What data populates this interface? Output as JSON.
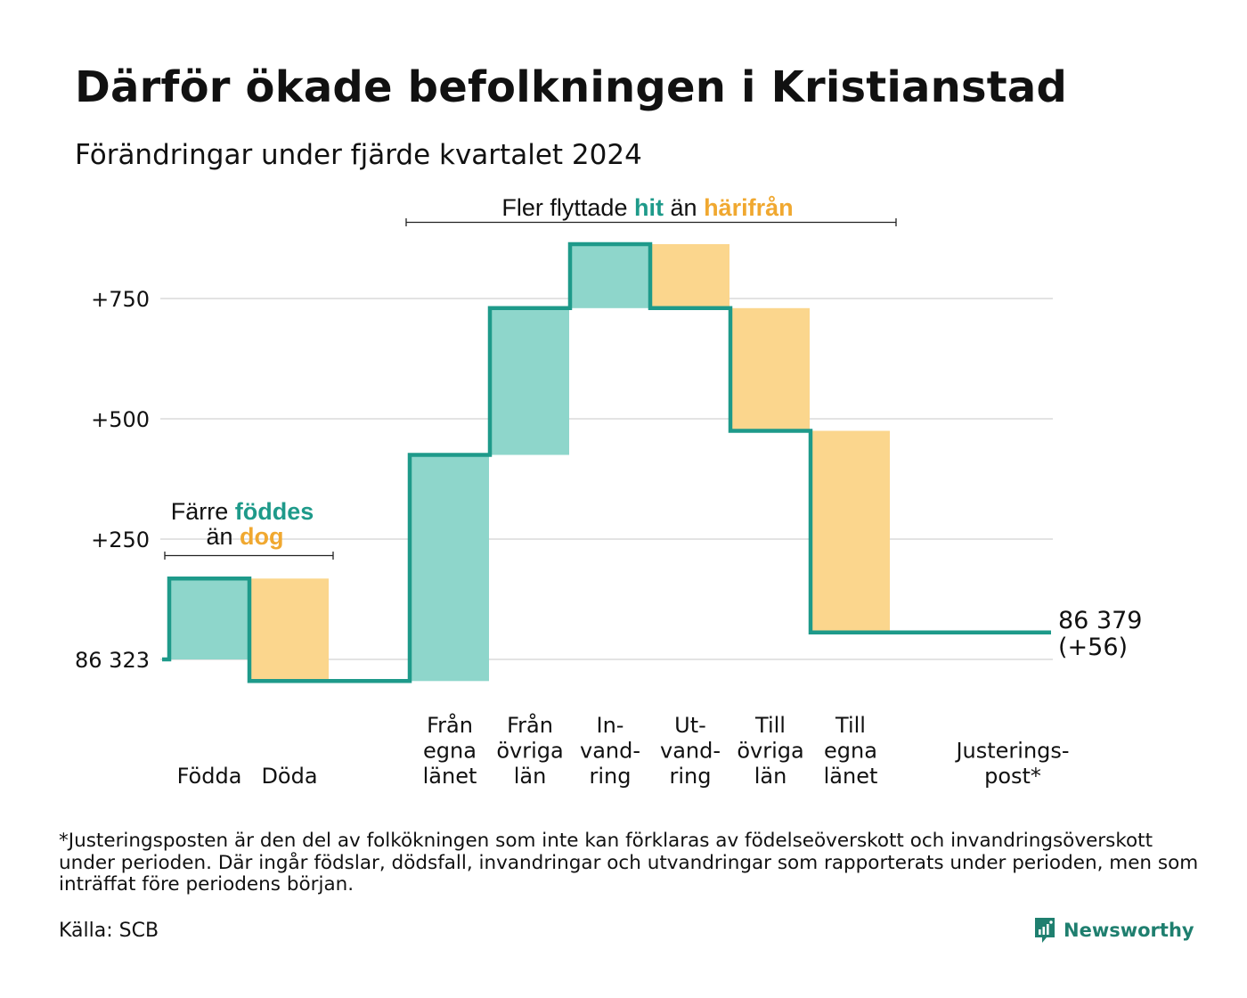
{
  "title": "Därför ökade befolkningen i Kristianstad",
  "subtitle": "Förändringar under fjärde kvartalet 2024",
  "colors": {
    "inflow_fill": "#8ed6cb",
    "outflow_fill": "#fbd68d",
    "line": "#1e9a8a",
    "hit_text": "#1e9a8a",
    "away_text": "#f0a830",
    "grid": "#e3e3e3"
  },
  "annotations": {
    "births_group": {
      "line1_prefix": "Färre",
      "line1_highlight": "föddes",
      "line2_prefix": "än",
      "line2_highlight": "dog"
    },
    "migration_group": {
      "prefix": "Fler flyttade",
      "highlight1": "hit",
      "middle": "än",
      "highlight2": "härifrån"
    }
  },
  "chart_data": {
    "type": "waterfall",
    "baseline_value": 86323,
    "baseline_label": "86 323",
    "ylim": [
      -75,
      880
    ],
    "yticks": [
      {
        "value": 0,
        "label": "86 323"
      },
      {
        "value": 250,
        "label": "+250"
      },
      {
        "value": 500,
        "label": "+500"
      },
      {
        "value": 750,
        "label": "+750"
      }
    ],
    "grid": true,
    "steps": [
      {
        "label_lines": [
          "Födda"
        ],
        "change": 168,
        "kind": "in"
      },
      {
        "label_lines": [
          "Döda"
        ],
        "change": -213,
        "kind": "out"
      },
      {
        "label_lines": [
          ""
        ],
        "change": 0,
        "kind": "none"
      },
      {
        "label_lines": [
          "Från",
          "egna",
          "länet"
        ],
        "change": 470,
        "kind": "in"
      },
      {
        "label_lines": [
          "Från",
          "övriga",
          "län"
        ],
        "change": 305,
        "kind": "in"
      },
      {
        "label_lines": [
          "In-",
          "vand-",
          "ring"
        ],
        "change": 133,
        "kind": "in"
      },
      {
        "label_lines": [
          "Ut-",
          "vand-",
          "ring"
        ],
        "change": -133,
        "kind": "out"
      },
      {
        "label_lines": [
          "Till",
          "övriga",
          "län"
        ],
        "change": -255,
        "kind": "out"
      },
      {
        "label_lines": [
          "Till",
          "egna",
          "länet"
        ],
        "change": -419,
        "kind": "out"
      },
      {
        "label_lines": [
          ""
        ],
        "change": 0,
        "kind": "none"
      },
      {
        "label_lines": [
          "Justerings-",
          "post*"
        ],
        "change": 0,
        "kind": "adjust"
      }
    ],
    "end_value": 86379,
    "end_label_line1": "86 379",
    "end_label_line2": "(+56)"
  },
  "footnote": "*Justeringsposten är den del av folkökningen som inte kan förklaras av födelseöverskott och invandringsöverskott under perioden. Där ingår födslar, dödsfall, invandringar och utvandringar som rapporterats under perioden, men som inträffat före periodens början.",
  "source": "Källa: SCB",
  "brand": {
    "name": "Newsworthy",
    "icon": "newsworthy-logo-icon"
  }
}
